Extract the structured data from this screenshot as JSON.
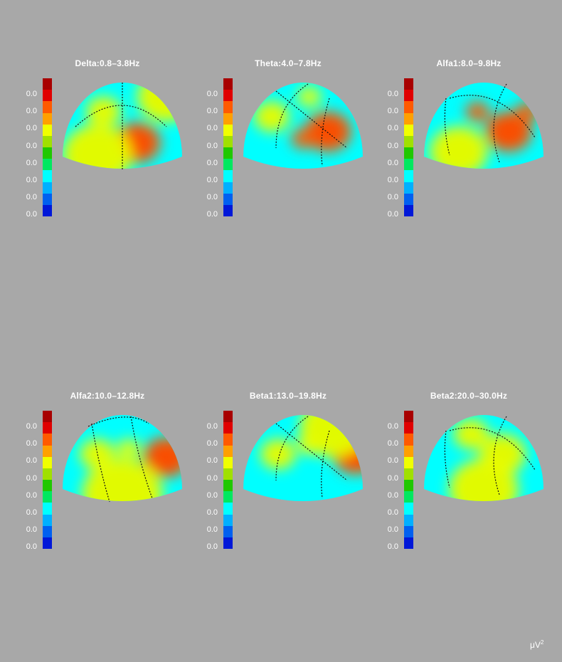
{
  "chart_data": [
    {
      "type": "heatmap",
      "title": "Delta:0.8–3.8Hz",
      "scale_labels": [
        "0.0",
        "0.0",
        "0.0",
        "0.0",
        "0.0",
        "0.0",
        "0.0",
        "0.0"
      ],
      "view": "top",
      "blobs": [
        {
          "x": 0.62,
          "y": 0.66,
          "level": 11
        },
        {
          "x": 0.3,
          "y": 0.78,
          "level": 3
        },
        {
          "x": 0.35,
          "y": 0.35,
          "level": 6
        },
        {
          "x": 0.85,
          "y": 0.2,
          "level": 4
        }
      ]
    },
    {
      "type": "heatmap",
      "title": "Theta:4.0–7.8Hz",
      "scale_labels": [
        "0.0",
        "0.0",
        "0.0",
        "0.0",
        "0.0",
        "0.0",
        "0.0",
        "0.0"
      ],
      "view": "right-oblique",
      "blobs": [
        {
          "x": 0.7,
          "y": 0.55,
          "level": 11
        },
        {
          "x": 0.5,
          "y": 0.62,
          "level": 8
        },
        {
          "x": 0.25,
          "y": 0.4,
          "level": 6
        },
        {
          "x": 0.55,
          "y": 0.2,
          "level": 7
        }
      ]
    },
    {
      "type": "heatmap",
      "title": "Alfa1:8.0–9.8Hz",
      "scale_labels": [
        "0.0",
        "0.0",
        "0.0",
        "0.0",
        "0.0",
        "0.0",
        "0.0",
        "0.0"
      ],
      "view": "left-oblique",
      "blobs": [
        {
          "x": 0.7,
          "y": 0.55,
          "level": 11
        },
        {
          "x": 0.45,
          "y": 0.35,
          "level": 8
        },
        {
          "x": 0.3,
          "y": 0.75,
          "level": 4
        },
        {
          "x": 0.85,
          "y": 0.35,
          "level": 9
        }
      ]
    },
    {
      "type": "heatmap",
      "title": "Alfa2:10.0–12.8Hz",
      "scale_labels": [
        "0.0",
        "0.0",
        "0.0",
        "0.0",
        "0.0",
        "0.0",
        "0.0",
        "0.0"
      ],
      "view": "back",
      "blobs": [
        {
          "x": 0.85,
          "y": 0.48,
          "level": 11
        },
        {
          "x": 0.55,
          "y": 0.4,
          "level": 7
        },
        {
          "x": 0.3,
          "y": 0.45,
          "level": 6
        },
        {
          "x": 0.5,
          "y": 0.85,
          "level": 2
        }
      ]
    },
    {
      "type": "heatmap",
      "title": "Beta1:13.0–19.8Hz",
      "scale_labels": [
        "0.0",
        "0.0",
        "0.0",
        "0.0",
        "0.0",
        "0.0",
        "0.0",
        "0.0"
      ],
      "view": "right-oblique",
      "blobs": [
        {
          "x": 0.92,
          "y": 0.45,
          "level": 11
        },
        {
          "x": 0.55,
          "y": 0.35,
          "level": 7
        },
        {
          "x": 0.3,
          "y": 0.45,
          "level": 6
        },
        {
          "x": 0.75,
          "y": 0.18,
          "level": 3
        }
      ]
    },
    {
      "type": "heatmap",
      "title": "Beta2:20.0–30.0Hz",
      "scale_labels": [
        "0.0",
        "0.0",
        "0.0",
        "0.0",
        "0.0",
        "0.0",
        "0.0",
        "0.0"
      ],
      "view": "left-oblique",
      "blobs": [
        {
          "x": 0.4,
          "y": 0.25,
          "level": 6
        },
        {
          "x": 0.65,
          "y": 0.45,
          "level": 5
        },
        {
          "x": 0.5,
          "y": 0.8,
          "level": 3
        }
      ]
    }
  ],
  "colorbar": [
    "#a80000",
    "#e00000",
    "#ff5a00",
    "#ffa000",
    "#f0ff00",
    "#a0e000",
    "#20c800",
    "#00e860",
    "#00ffff",
    "#00b0ff",
    "#0060f0",
    "#0018d8"
  ],
  "unit": "μV",
  "unit_sup": "2"
}
